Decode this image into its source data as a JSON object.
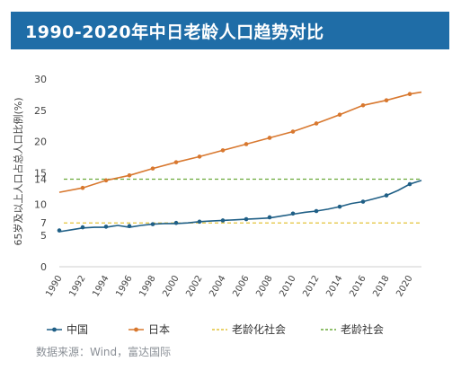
{
  "title": "1990-2020年中日老龄人口趋势对比",
  "source": "数据来源：Wind，富达国际",
  "colors": {
    "title_bg": "#1f6da7",
    "china": "#1f5f86",
    "japan": "#d8782f",
    "aging_society": "#e3c33a",
    "aged_society": "#6aaa3a",
    "axis_text": "#444444"
  },
  "chart_data": {
    "type": "line",
    "ylabel": "65岁及以上人口占总人口比例(%)",
    "xlim": [
      1990,
      2021
    ],
    "ylim": [
      0,
      30
    ],
    "y_ticks": [
      0,
      5,
      7,
      10,
      14,
      15,
      20,
      25,
      30
    ],
    "x_ticks": [
      "1990",
      "1992",
      "1994",
      "1996",
      "1998",
      "2000",
      "2002",
      "2004",
      "2006",
      "2008",
      "2010",
      "2012",
      "2014",
      "2016",
      "2018",
      "2020"
    ],
    "grid": false,
    "legend_position": "bottom",
    "series": [
      {
        "name": "中国",
        "x": [
          1990,
          1992,
          1994,
          1996,
          1998,
          2000,
          2002,
          2004,
          2006,
          2008,
          2010,
          2012,
          2014,
          2016,
          2018,
          2020
        ],
        "values": [
          5.8,
          6.3,
          6.4,
          6.5,
          6.8,
          7.0,
          7.2,
          7.4,
          7.6,
          7.9,
          8.5,
          8.9,
          9.6,
          10.4,
          11.4,
          13.2
        ],
        "line_x": [
          1990,
          1991,
          1992,
          1993,
          1994,
          1995,
          1996,
          1997,
          1998,
          1999,
          2000,
          2001,
          2002,
          2003,
          2004,
          2005,
          2006,
          2007,
          2008,
          2009,
          2010,
          2011,
          2012,
          2013,
          2014,
          2015,
          2016,
          2017,
          2018,
          2019,
          2020,
          2021
        ],
        "line_values": [
          5.6,
          5.9,
          6.2,
          6.3,
          6.3,
          6.6,
          6.3,
          6.6,
          6.8,
          6.9,
          6.9,
          7.0,
          7.2,
          7.3,
          7.4,
          7.5,
          7.6,
          7.7,
          7.8,
          8.1,
          8.4,
          8.7,
          8.9,
          9.2,
          9.6,
          10.1,
          10.4,
          10.9,
          11.4,
          12.2,
          13.2,
          13.8
        ],
        "marker": "circle"
      },
      {
        "name": "日本",
        "x": [
          1992,
          1994,
          1996,
          1998,
          2000,
          2002,
          2004,
          2006,
          2008,
          2010,
          2012,
          2014,
          2016,
          2018,
          2020
        ],
        "values": [
          12.6,
          13.8,
          14.6,
          15.7,
          16.7,
          17.6,
          18.6,
          19.6,
          20.6,
          21.6,
          22.9,
          24.3,
          25.8,
          26.6,
          27.6
        ],
        "line_x": [
          1990,
          1992,
          1994,
          1996,
          1998,
          2000,
          2002,
          2004,
          2006,
          2008,
          2010,
          2012,
          2014,
          2016,
          2018,
          2020,
          2021
        ],
        "line_values": [
          11.9,
          12.6,
          13.8,
          14.6,
          15.7,
          16.7,
          17.6,
          18.6,
          19.6,
          20.6,
          21.6,
          22.9,
          24.3,
          25.8,
          26.6,
          27.6,
          27.9
        ],
        "marker": "circle"
      },
      {
        "name": "老龄化社会",
        "type": "hline",
        "y": 7,
        "style": "dashed"
      },
      {
        "name": "老龄社会",
        "type": "hline",
        "y": 14,
        "style": "dashed"
      }
    ]
  }
}
